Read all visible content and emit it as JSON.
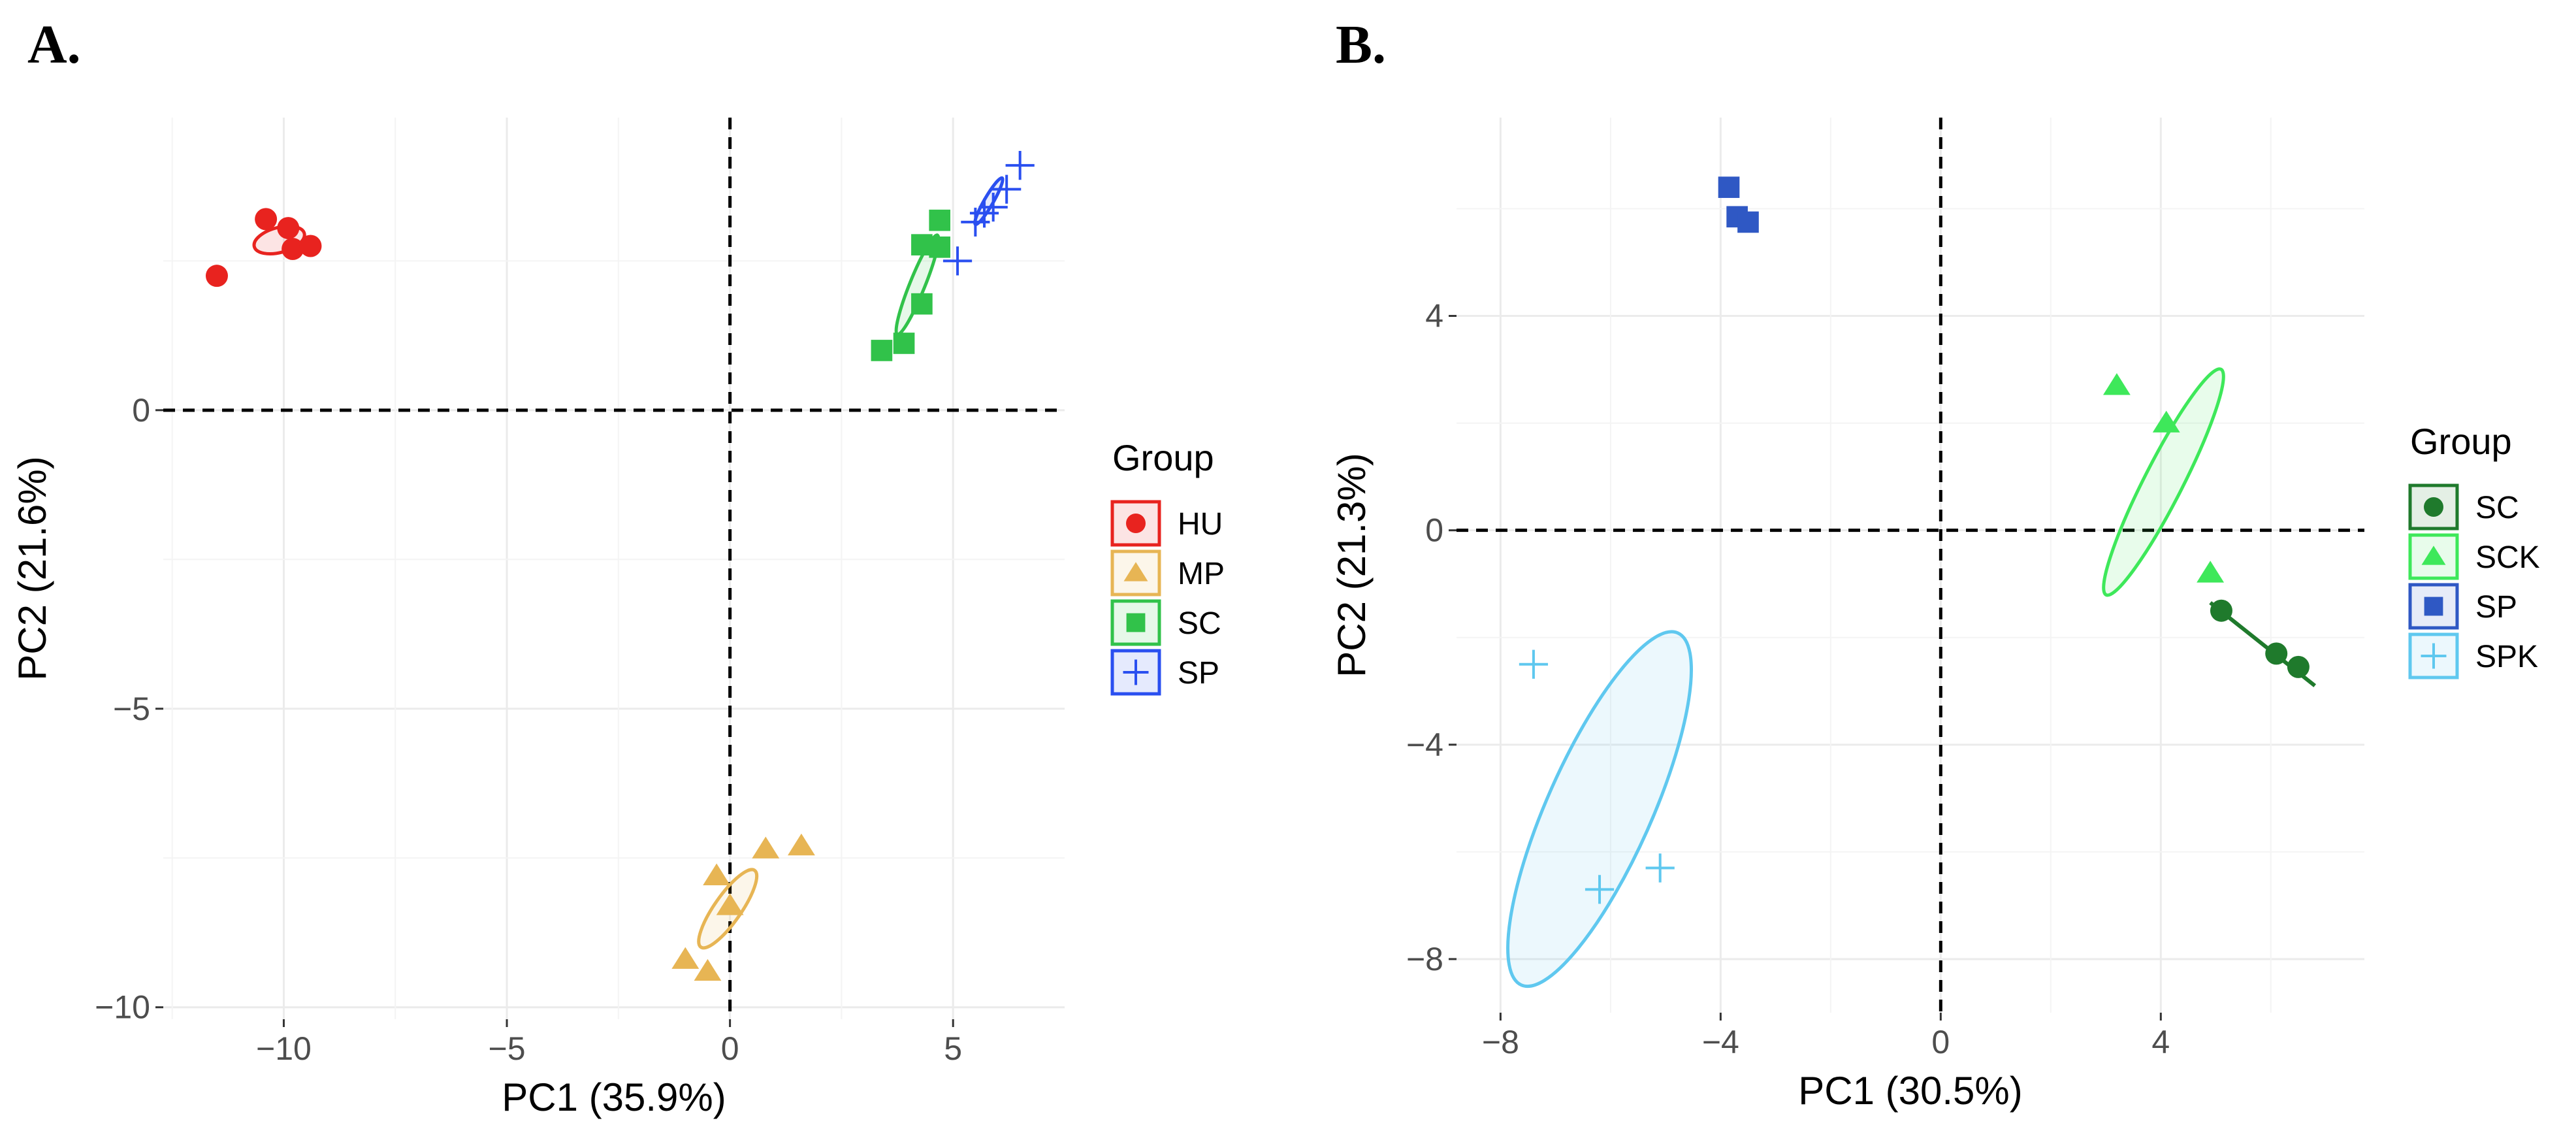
{
  "panels": [
    {
      "label": "A."
    },
    {
      "label": "B."
    }
  ],
  "colors": {
    "HU": "#e8231f",
    "MP": "#e7b554",
    "SC_A": "#31c24a",
    "SP_A": "#2a4ff0",
    "SC_B": "#1f7a2c",
    "SCK": "#3ee85a",
    "SP_B": "#2f58c4",
    "SPK": "#5fc8ef"
  },
  "chart_data": [
    {
      "type": "scatter",
      "title": "",
      "xlabel": "PC1 (35.9%)",
      "ylabel": "PC2 (21.6%)",
      "xlim": [
        -12.7,
        7.5
      ],
      "ylim": [
        -10.2,
        4.9
      ],
      "xticks": [
        -10,
        -5,
        0,
        5
      ],
      "xtick_labels": [
        "−10",
        "−5",
        "0",
        "5"
      ],
      "yticks": [
        -10,
        -5,
        0
      ],
      "ytick_labels": [
        "−10",
        "−5",
        "0"
      ],
      "grid": true,
      "reference_lines": {
        "x": 0,
        "y": 0,
        "style": "dashed"
      },
      "legend": {
        "title": "Group",
        "position": "right"
      },
      "series": [
        {
          "name": "HU",
          "shape": "circle",
          "color": "#e8231f",
          "points": [
            [
              -11.5,
              2.25
            ],
            [
              -10.4,
              3.2
            ],
            [
              -9.9,
              3.05
            ],
            [
              -9.8,
              2.7
            ],
            [
              -9.4,
              2.75
            ]
          ],
          "ellipse": {
            "cx": -10.1,
            "cy": 2.85,
            "rx": 0.58,
            "ry": 0.28,
            "angle": 15
          }
        },
        {
          "name": "MP",
          "shape": "triangle",
          "color": "#e7b554",
          "points": [
            [
              -1.0,
              -9.2
            ],
            [
              -0.5,
              -9.4
            ],
            [
              -0.3,
              -7.8
            ],
            [
              0.0,
              -8.3
            ],
            [
              0.8,
              -7.35
            ],
            [
              1.6,
              -7.3
            ]
          ],
          "ellipse": {
            "cx": -0.05,
            "cy": -8.35,
            "rx": 1.05,
            "ry": 0.3,
            "angle": 55
          }
        },
        {
          "name": "SC",
          "shape": "square",
          "color": "#31c24a",
          "points": [
            [
              3.4,
              1.0
            ],
            [
              3.9,
              1.12
            ],
            [
              4.3,
              1.78
            ],
            [
              4.3,
              2.77
            ],
            [
              4.7,
              2.73
            ],
            [
              4.7,
              3.18
            ]
          ],
          "ellipse": {
            "cx": 4.2,
            "cy": 2.1,
            "rx": 1.2,
            "ry": 0.17,
            "angle": 68
          }
        },
        {
          "name": "SP",
          "shape": "plus",
          "color": "#2a4ff0",
          "points": [
            [
              5.1,
              2.5
            ],
            [
              5.5,
              3.15
            ],
            [
              5.7,
              3.3
            ],
            [
              5.9,
              3.4
            ],
            [
              6.2,
              3.7
            ],
            [
              6.5,
              4.1
            ]
          ],
          "ellipse": {
            "cx": 5.8,
            "cy": 3.5,
            "rx": 0.6,
            "ry": 0.1,
            "angle": 60
          }
        }
      ]
    },
    {
      "type": "scatter",
      "title": "",
      "xlabel": "PC1 (30.5%)",
      "ylabel": "PC2 (21.3%)",
      "xlim": [
        -8.8,
        7.7
      ],
      "ylim": [
        -9.0,
        7.7
      ],
      "xticks": [
        -8,
        -4,
        0,
        4
      ],
      "xtick_labels": [
        "−8",
        "−4",
        "0",
        "4"
      ],
      "yticks": [
        -8,
        -4,
        0,
        4
      ],
      "ytick_labels": [
        "−8",
        "−4",
        "0",
        "4"
      ],
      "grid": true,
      "reference_lines": {
        "x": 0,
        "y": 0,
        "style": "dashed"
      },
      "legend": {
        "title": "Group",
        "position": "right"
      },
      "series": [
        {
          "name": "SC",
          "shape": "circle",
          "color": "#1f7a2c",
          "points": [
            [
              5.1,
              -1.5
            ],
            [
              6.1,
              -2.3
            ],
            [
              6.5,
              -2.55
            ]
          ],
          "line": [
            [
              4.9,
              -1.35
            ],
            [
              6.8,
              -2.9
            ]
          ]
        },
        {
          "name": "SCK",
          "shape": "triangle",
          "color": "#3ee85a",
          "points": [
            [
              3.2,
              2.7
            ],
            [
              4.1,
              2.0
            ],
            [
              4.9,
              -0.8
            ]
          ],
          "ellipse": {
            "cx": 4.05,
            "cy": 0.9,
            "rx": 2.3,
            "ry": 0.35,
            "angle": 63
          }
        },
        {
          "name": "SP",
          "shape": "square",
          "color": "#2f58c4",
          "points": [
            [
              -3.85,
              6.4
            ],
            [
              -3.7,
              5.85
            ],
            [
              -3.5,
              5.75
            ]
          ]
        },
        {
          "name": "SPK",
          "shape": "plus",
          "color": "#5fc8ef",
          "points": [
            [
              -7.4,
              -2.5
            ],
            [
              -6.2,
              -6.7
            ],
            [
              -5.1,
              -6.3
            ]
          ],
          "ellipse": {
            "cx": -6.2,
            "cy": -5.2,
            "rx": 3.5,
            "ry": 0.95,
            "angle": 66
          }
        }
      ]
    }
  ]
}
